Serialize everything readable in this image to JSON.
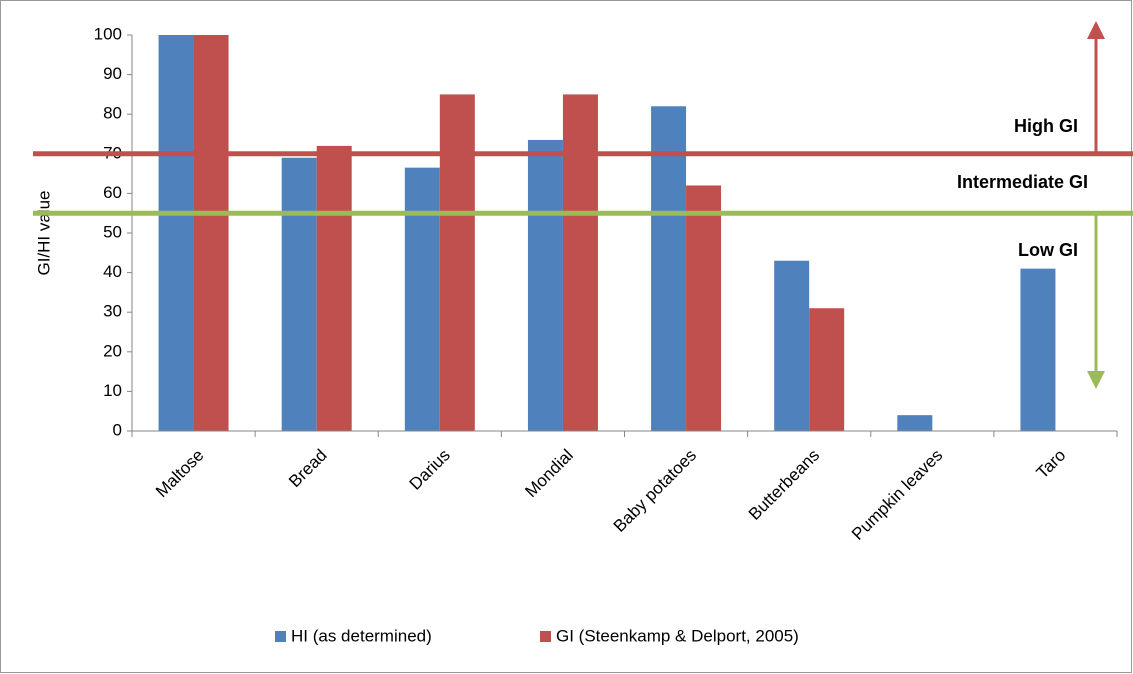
{
  "chart_data": {
    "type": "bar",
    "y_label": "GI/HI value",
    "categories": [
      "Maltose",
      "Bread",
      "Darius",
      "Mondial",
      "Baby potatoes",
      "Butterbeans",
      "Pumpkin leaves",
      "Taro"
    ],
    "series": [
      {
        "name": "HI (as determined)",
        "color": "#4f81bd",
        "values": [
          100,
          69,
          66.5,
          73.5,
          82,
          43,
          4,
          41
        ]
      },
      {
        "name": "GI (Steenkamp & Delport, 2005)",
        "color": "#c0504d",
        "values": [
          100,
          72,
          85,
          85,
          62,
          31,
          null,
          null
        ]
      }
    ],
    "ylim": [
      0,
      100
    ],
    "yticks": [
      0,
      10,
      20,
      30,
      40,
      50,
      60,
      70,
      80,
      90,
      100
    ],
    "reference_lines": [
      {
        "value": 70,
        "color": "#c0504d"
      },
      {
        "value": 55,
        "color": "#9bbb59"
      }
    ],
    "annotations": [
      {
        "text": "High GI",
        "color": "#c00000"
      },
      {
        "text": "Intermediate GI",
        "color": "#f79646"
      },
      {
        "text": "Low GI",
        "color": "#9bbb59"
      }
    ],
    "legend": "bottom"
  }
}
